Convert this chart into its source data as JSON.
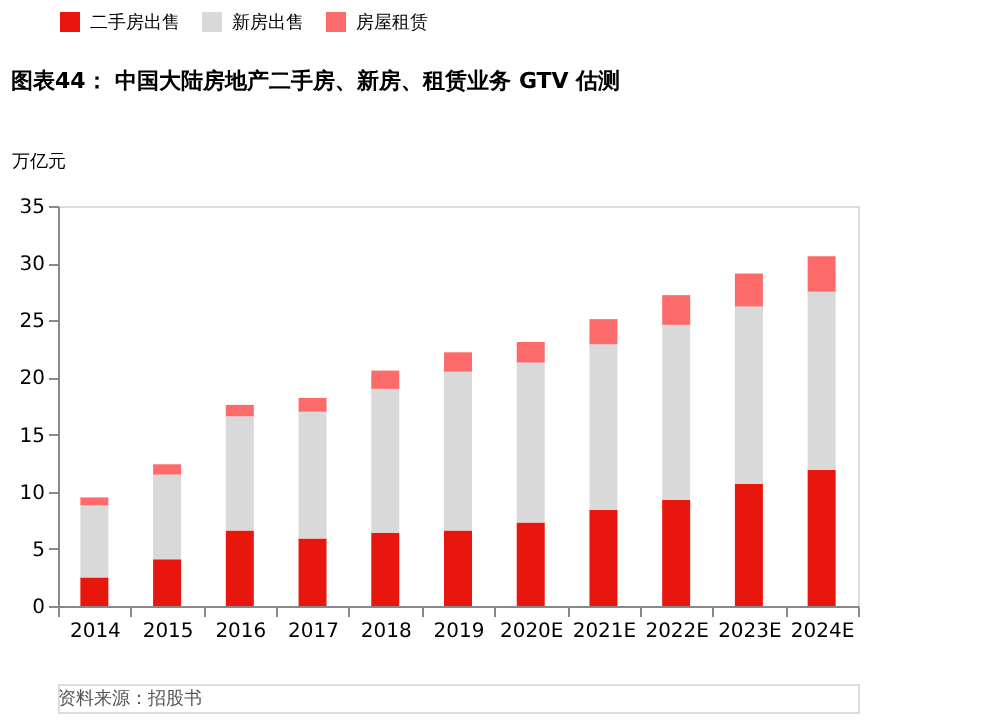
{
  "chart_data": {
    "type": "bar",
    "stacked": true,
    "title": "图表44：  中国大陆房地产二手房、新房、租赁业务 GTV 估测",
    "ylabel": "万亿元",
    "categories": [
      "2014",
      "2015",
      "2016",
      "2017",
      "2018",
      "2019",
      "2020E",
      "2021E",
      "2022E",
      "2023E",
      "2024E"
    ],
    "series": [
      {
        "name": "二手房出售",
        "color": "#e8160c",
        "values": [
          2.5,
          4.1,
          6.6,
          5.9,
          6.4,
          6.6,
          7.3,
          8.4,
          9.3,
          10.7,
          11.9
        ]
      },
      {
        "name": "新房出售",
        "color": "#d9d9d9",
        "values": [
          6.3,
          7.4,
          10.0,
          11.1,
          12.6,
          13.9,
          14.0,
          14.5,
          15.3,
          15.5,
          15.6
        ]
      },
      {
        "name": "房屋租赁",
        "color": "#fd6a6a",
        "values": [
          0.7,
          0.9,
          1.0,
          1.2,
          1.6,
          1.7,
          1.8,
          2.2,
          2.6,
          2.9,
          3.1
        ]
      }
    ],
    "ylim": [
      0,
      35
    ],
    "yticks": [
      0,
      5,
      10,
      15,
      20,
      25,
      30,
      35
    ],
    "grid": false,
    "legend": "top",
    "annotations": [
      "资料来源：招股书"
    ]
  }
}
